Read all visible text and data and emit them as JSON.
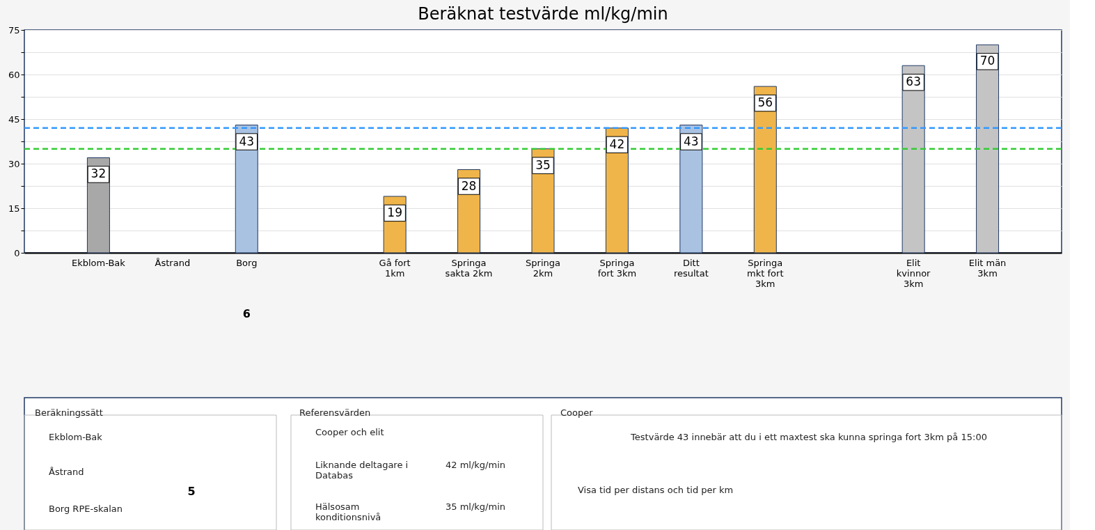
{
  "chart_data": [
    {
      "type": "bar",
      "title": "Beräknat testvärde ml/kg/min",
      "categories": [
        "Ekblom-Bak",
        "Åstrand",
        "Borg",
        null,
        "Gå fort 1km",
        "Springa sakta 2km",
        "Springa 2km",
        "Springa fort 3km",
        "Ditt resultat",
        "Springa mkt fort 3km",
        null,
        "Elit kvinnor 3km",
        "Elit män 3km"
      ],
      "values": [
        32,
        null,
        43,
        null,
        19,
        28,
        35,
        42,
        43,
        56,
        null,
        63,
        70
      ],
      "colors": [
        "#a8a8a8",
        "#a8a8a8",
        "#a9c2e2",
        "#f0b54a",
        "#f0b54a",
        "#f0b54a",
        "#f0b54a",
        "#f0b54a",
        "#a9c2e2",
        "#f0b54a",
        "#f0b54a",
        "#c4c4c4",
        "#c4c4c4"
      ],
      "data_labels": true,
      "ylim": [
        0,
        75
      ],
      "yticks": [
        0,
        {
          "value": 7.5,
          "label": null
        },
        15,
        {
          "value": 22.5,
          "label": null
        },
        30,
        {
          "value": 37.5,
          "label": null
        },
        45,
        {
          "value": 52.5,
          "label": null
        },
        60,
        {
          "value": 67.5,
          "label": null
        },
        75
      ],
      "grid": "y",
      "ref_lines": [
        {
          "axis": "y",
          "value": 42,
          "color": "#3399ff",
          "line_style": "dashed"
        },
        {
          "axis": "y",
          "value": 35,
          "color": "#33cc33",
          "line_style": "dashed"
        }
      ],
      "annotations": [
        "6"
      ]
    },
    {
      "type": "other",
      "annotations": [
        "Beräkningssätt",
        "Ekblom-Bak",
        "Åstrand",
        "Borg RPE-skalan",
        "Referensvärden",
        "Cooper och elit",
        "Liknande deltagare i Databas",
        "42 ml/kg/min",
        "Hälsosam konditionsnivå",
        "35 ml/kg/min",
        "Cooper",
        "Testvärde 43 innebär att du i ett maxtest ska kunna springa fort 3km på 15:00",
        "Visa tid per distans och tid per km",
        "5"
      ]
    }
  ]
}
